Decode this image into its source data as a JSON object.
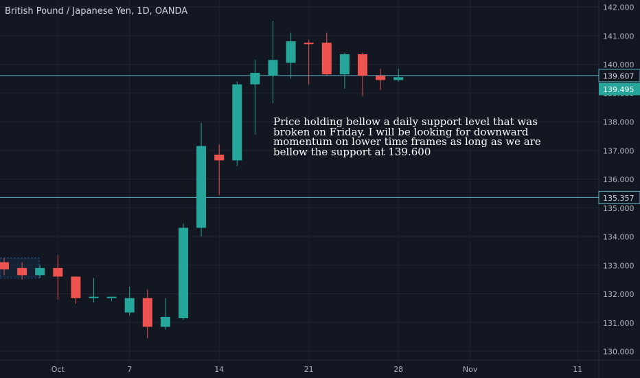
{
  "chart_data": {
    "type": "candlestick",
    "title": "British Pound / Japanese Yen, 1D, OANDA",
    "ylim": [
      129.8,
      142.25
    ],
    "y_ticks": [
      "130.000",
      "131.000",
      "132.000",
      "133.000",
      "134.000",
      "135.000",
      "136.000",
      "137.000",
      "138.000",
      "139.000",
      "140.000",
      "141.000",
      "142.000"
    ],
    "x_ticks": [
      {
        "label": "Oct",
        "index": 3
      },
      {
        "label": "7",
        "index": 7
      },
      {
        "label": "14",
        "index": 12
      },
      {
        "label": "21",
        "index": 17
      },
      {
        "label": "28",
        "index": 22
      },
      {
        "label": "Nov",
        "index": 26
      },
      {
        "label": "11",
        "index": 32
      }
    ],
    "candles": [
      {
        "o": 133.1,
        "h": 133.25,
        "l": 132.65,
        "c": 132.85
      },
      {
        "o": 132.9,
        "h": 133.1,
        "l": 132.5,
        "c": 132.65
      },
      {
        "o": 132.65,
        "h": 133.0,
        "l": 132.55,
        "c": 132.9
      },
      {
        "o": 132.9,
        "h": 133.35,
        "l": 131.8,
        "c": 132.6
      },
      {
        "o": 132.6,
        "h": 132.6,
        "l": 131.65,
        "c": 131.85
      },
      {
        "o": 131.85,
        "h": 132.55,
        "l": 131.7,
        "c": 131.9
      },
      {
        "o": 131.85,
        "h": 131.9,
        "l": 131.75,
        "c": 131.9
      },
      {
        "o": 131.35,
        "h": 132.25,
        "l": 131.25,
        "c": 131.85
      },
      {
        "o": 131.85,
        "h": 132.15,
        "l": 130.45,
        "c": 130.85
      },
      {
        "o": 130.85,
        "h": 131.85,
        "l": 130.75,
        "c": 131.2
      },
      {
        "o": 131.15,
        "h": 134.45,
        "l": 131.1,
        "c": 134.3
      },
      {
        "o": 134.3,
        "h": 137.95,
        "l": 134.0,
        "c": 137.15
      },
      {
        "o": 136.85,
        "h": 137.2,
        "l": 135.45,
        "c": 136.65
      },
      {
        "o": 136.65,
        "h": 139.4,
        "l": 136.45,
        "c": 139.3
      },
      {
        "o": 139.3,
        "h": 140.15,
        "l": 137.55,
        "c": 139.7
      },
      {
        "o": 139.6,
        "h": 141.5,
        "l": 138.65,
        "c": 140.15
      },
      {
        "o": 140.05,
        "h": 141.1,
        "l": 139.5,
        "c": 140.8
      },
      {
        "o": 140.75,
        "h": 140.85,
        "l": 139.3,
        "c": 140.7
      },
      {
        "o": 140.75,
        "h": 141.1,
        "l": 139.6,
        "c": 139.65
      },
      {
        "o": 139.65,
        "h": 140.4,
        "l": 139.15,
        "c": 140.35
      },
      {
        "o": 140.35,
        "h": 140.4,
        "l": 138.9,
        "c": 139.6
      },
      {
        "o": 139.6,
        "h": 139.85,
        "l": 139.1,
        "c": 139.45
      },
      {
        "o": 139.45,
        "h": 139.85,
        "l": 139.4,
        "c": 139.55
      }
    ],
    "levels": [
      {
        "label": "139.607",
        "value": 139.607
      },
      {
        "label": "135.357",
        "value": 135.357
      }
    ],
    "last_price": {
      "label": "139.495",
      "value": 139.495
    },
    "annotation": [
      "Price holding bellow a daily support level that was",
      "broken on Friday. I will be looking for downward",
      "momentum on lower time frames as long as we are",
      "bellow the support at 139.600"
    ],
    "colors": {
      "background": "#131722",
      "up": "#26a69a",
      "down": "#ef5350",
      "level": "#5ab1c8",
      "grid": "#1f2433",
      "text": "#b2b5be"
    }
  }
}
